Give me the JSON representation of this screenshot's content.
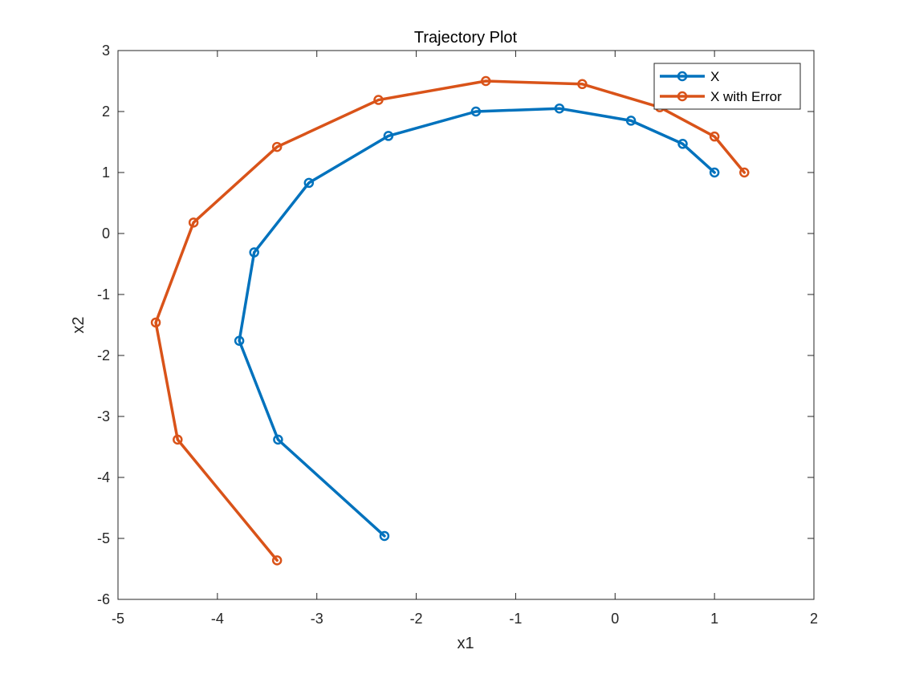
{
  "chart_data": {
    "type": "line",
    "title": "Trajectory Plot",
    "xlabel": "x1",
    "ylabel": "x2",
    "xlim": [
      -5,
      2
    ],
    "ylim": [
      -6,
      3
    ],
    "xticks": [
      -5,
      -4,
      -3,
      -2,
      -1,
      0,
      1,
      2
    ],
    "yticks": [
      -6,
      -5,
      -4,
      -3,
      -2,
      -1,
      0,
      1,
      2,
      3
    ],
    "xtick_labels": [
      "-5",
      "-4",
      "-3",
      "-2",
      "-1",
      "0",
      "1",
      "2"
    ],
    "ytick_labels": [
      "-6",
      "-5",
      "-4",
      "-3",
      "-2",
      "-1",
      "0",
      "1",
      "2",
      "3"
    ],
    "grid": true,
    "legend_position": "top-right",
    "markers": "circle",
    "series": [
      {
        "name": "X",
        "color": "#0072BD",
        "x": [
          1.0,
          0.68,
          0.16,
          -0.56,
          -1.4,
          -2.28,
          -3.08,
          -3.63,
          -3.78,
          -3.39,
          -2.32
        ],
        "y": [
          1.0,
          1.47,
          1.85,
          2.05,
          2.0,
          1.6,
          0.83,
          -0.31,
          -1.76,
          -3.38,
          -4.96
        ]
      },
      {
        "name": "X with Error",
        "color": "#D95319",
        "x": [
          1.3,
          1.0,
          0.45,
          -0.33,
          -1.3,
          -2.38,
          -3.4,
          -4.24,
          -4.62,
          -4.4,
          -3.4
        ],
        "y": [
          1.0,
          1.59,
          2.07,
          2.45,
          2.5,
          2.19,
          1.42,
          0.18,
          -1.46,
          -3.38,
          -5.36
        ]
      }
    ]
  }
}
